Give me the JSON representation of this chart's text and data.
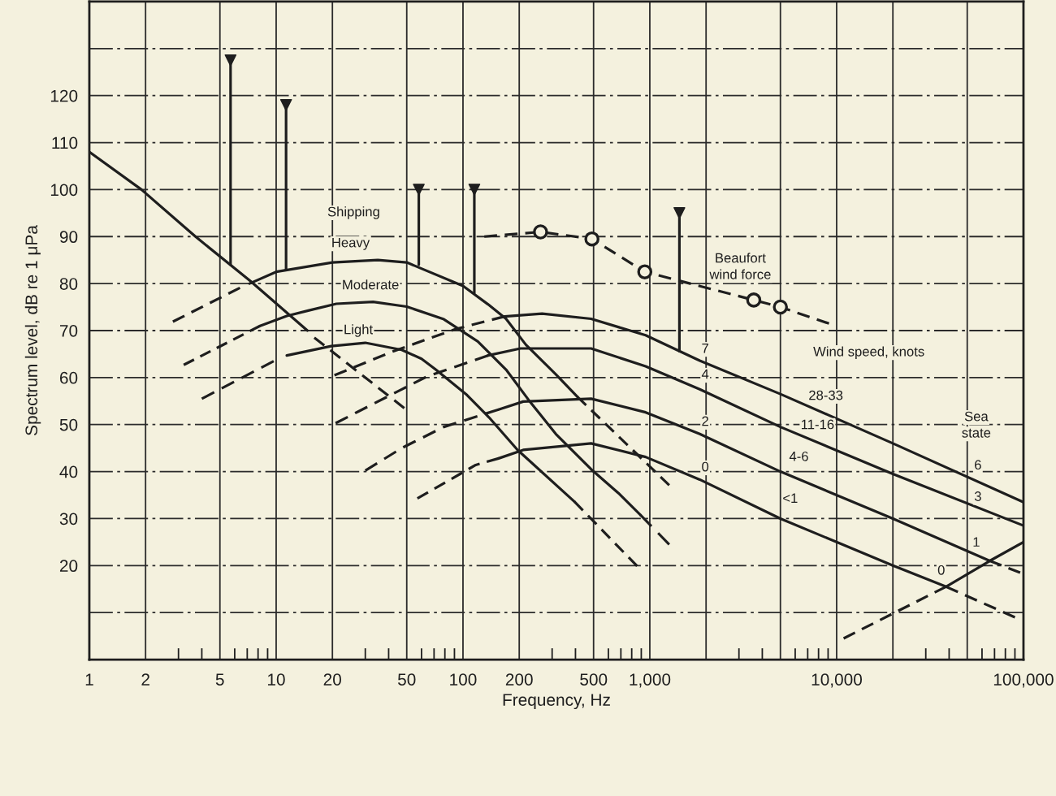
{
  "chart_data": {
    "type": "line",
    "xlabel": "Frequency, Hz",
    "ylabel": "Spectrum level, dB re 1 μPa",
    "log": "x",
    "xlim": [
      1,
      100000
    ],
    "ylim": [
      0,
      140
    ],
    "xticks": [
      1,
      2,
      5,
      10,
      20,
      50,
      100,
      200,
      500,
      {
        "value": 1000,
        "label": "1,000"
      },
      {
        "value": 2000,
        "label": null
      },
      {
        "value": 5000,
        "label": null
      },
      {
        "value": 10000,
        "label": "10,000"
      },
      {
        "value": 20000,
        "label": null
      },
      {
        "value": 50000,
        "label": null
      },
      {
        "value": 100000,
        "label": "100,000"
      }
    ],
    "yticks": [
      {
        "value": 10,
        "label": null
      },
      20,
      30,
      40,
      50,
      60,
      70,
      80,
      90,
      100,
      110,
      120,
      {
        "value": 130,
        "label": null
      }
    ],
    "grid": true,
    "series": [
      {
        "line_style": "solid",
        "color": "#1e1e1e",
        "x": [
          1,
          1.9,
          3.7,
          7.3,
          14.7
        ],
        "values": [
          108,
          100,
          90,
          80.5,
          70
        ]
      },
      {
        "line_style": "dashed",
        "color": "#1e1e1e",
        "x": [
          16,
          48.5
        ],
        "values": [
          68.5,
          53.5
        ]
      },
      {
        "line_style": "dashed",
        "color": "#1e1e1e",
        "x": [
          2.8,
          6.4
        ],
        "values": [
          71.9,
          79.1
        ]
      },
      {
        "line_style": "solid",
        "color": "#1e1e1e",
        "x": [
          7.2,
          10,
          20,
          35,
          50,
          100,
          136,
          170,
          217,
          314,
          410
        ],
        "values": [
          80,
          82.5,
          84.5,
          85,
          84.5,
          79.5,
          75.6,
          72.5,
          67,
          60.7,
          55.9
        ]
      },
      {
        "line_style": "dashed",
        "color": "#1e1e1e",
        "x": [
          410,
          1270
        ],
        "values": [
          55.9,
          37.1
        ]
      },
      {
        "line_style": "dashed",
        "color": "#1e1e1e",
        "x": [
          3.2,
          8.2
        ],
        "values": [
          62.7,
          71
        ]
      },
      {
        "line_style": "solid",
        "color": "#1e1e1e",
        "x": [
          8.2,
          11.4,
          15,
          21,
          33,
          50,
          79,
          120,
          170,
          225,
          314,
          485,
          680,
          890
        ],
        "values": [
          71,
          73.1,
          74.3,
          75.7,
          76.1,
          75.1,
          72.4,
          67.7,
          61.7,
          55.2,
          48,
          40.5,
          35.4,
          30.8
        ]
      },
      {
        "line_style": "dashed",
        "color": "#1e1e1e",
        "x": [
          890,
          1270
        ],
        "values": [
          30.8,
          24.5
        ]
      },
      {
        "line_style": "dashed",
        "color": "#1e1e1e",
        "x": [
          4,
          9.7
        ],
        "values": [
          55.5,
          63.5
        ]
      },
      {
        "line_style": "solid",
        "color": "#1e1e1e",
        "x": [
          11.4,
          15,
          19.7,
          30,
          47,
          60,
          71.5,
          105,
          138,
          196,
          395
        ],
        "values": [
          64.7,
          65.7,
          66.7,
          67.4,
          65.9,
          64,
          61.7,
          56.3,
          51.5,
          44.6,
          33.6
        ]
      },
      {
        "line_style": "dashed",
        "color": "#1e1e1e",
        "x": [
          395,
          855
        ],
        "values": [
          33.6,
          19.9
        ]
      },
      {
        "line_style": "dashed",
        "color": "#1e1e1e",
        "x": [
          20.5,
          42.4,
          91,
          167
        ],
        "values": [
          60.5,
          65.6,
          70.3,
          73
        ]
      },
      {
        "line_style": "solid",
        "color": "#1e1e1e",
        "x": [
          167,
          265,
          485,
          950,
          1850,
          5000,
          20000,
          100000
        ],
        "values": [
          73,
          73.6,
          72.5,
          69,
          63.6,
          56.5,
          46,
          33.5
        ]
      },
      {
        "line_style": "dashed",
        "color": "#1e1e1e",
        "x": [
          20.8,
          47,
          64,
          136
        ],
        "values": [
          50.3,
          57.5,
          60.2,
          64.7
        ]
      },
      {
        "line_style": "solid",
        "color": "#1e1e1e",
        "x": [
          136,
          203,
          485,
          950,
          1850,
          5000,
          20000,
          100000
        ],
        "values": [
          64.7,
          66.2,
          66.2,
          62.4,
          57.5,
          49.5,
          39.5,
          28.5
        ]
      },
      {
        "line_style": "dashed",
        "color": "#1e1e1e",
        "x": [
          30,
          47,
          79,
          155
        ],
        "values": [
          40.2,
          45,
          49.5,
          53.2
        ]
      },
      {
        "line_style": "solid",
        "color": "#1e1e1e",
        "x": [
          155,
          210,
          485,
          950,
          1850,
          5000,
          20000,
          66000
        ],
        "values": [
          53.2,
          54.9,
          55.5,
          52.6,
          48,
          40,
          30,
          21
        ]
      },
      {
        "line_style": "dashed",
        "color": "#1e1e1e",
        "x": [
          66000,
          96000
        ],
        "values": [
          21,
          18.5
        ]
      },
      {
        "line_style": "dashed",
        "color": "#1e1e1e",
        "x": [
          57,
          117,
          155
        ],
        "values": [
          34.3,
          41.4,
          42.8
        ]
      },
      {
        "line_style": "solid",
        "color": "#1e1e1e",
        "x": [
          155,
          210,
          485,
          950,
          1850,
          5000,
          20000,
          38500
        ],
        "values": [
          42.8,
          44.6,
          46,
          43.1,
          38.3,
          30,
          20,
          15.5
        ]
      },
      {
        "line_style": "dashed",
        "color": "#1e1e1e",
        "x": [
          38500,
          90000
        ],
        "values": [
          15.5,
          9
        ]
      },
      {
        "line_style": "dashed",
        "color": "#1e1e1e",
        "x": [
          10900,
          38500
        ],
        "values": [
          4.5,
          15.5
        ]
      },
      {
        "line_style": "solid",
        "color": "#1e1e1e",
        "x": [
          38500,
          66000,
          100000
        ],
        "values": [
          15.5,
          21,
          25
        ]
      },
      {
        "line_style": "dashed",
        "color": "#1e1e1e",
        "x": [
          130,
          260,
          490,
          940,
          3600,
          5000,
          9100
        ],
        "values": [
          90,
          91,
          89.5,
          82.5,
          76.5,
          75,
          71.5
        ]
      },
      {
        "type": "scatter",
        "marker": "circle",
        "color": "#1e1e1e",
        "x": [
          260,
          490,
          940,
          3600,
          5000
        ],
        "values": [
          91,
          89.5,
          82.5,
          76.5,
          75
        ]
      },
      {
        "line_style": "solid",
        "color": "#1e1e1e",
        "x": [
          5.7,
          5.7
        ],
        "values": [
          84,
          127.5
        ]
      },
      {
        "line_style": "solid",
        "color": "#1e1e1e",
        "x": [
          11.3,
          11.3
        ],
        "values": [
          83,
          118
        ]
      },
      {
        "line_style": "solid",
        "color": "#1e1e1e",
        "x": [
          58,
          58
        ],
        "values": [
          84,
          100
        ]
      },
      {
        "line_style": "solid",
        "color": "#1e1e1e",
        "x": [
          115,
          115
        ],
        "values": [
          78,
          100
        ]
      },
      {
        "line_style": "solid",
        "color": "#1e1e1e",
        "x": [
          1440,
          1440
        ],
        "values": [
          65.6,
          95
        ]
      },
      {
        "type": "scatter",
        "marker": "triangle",
        "color": "#1e1e1e",
        "x": [
          5.7,
          11.3,
          58,
          115,
          1440
        ],
        "values": [
          127.5,
          118,
          100,
          100,
          95
        ]
      }
    ],
    "annotations": [
      "Shipping",
      "Heavy",
      "Moderate",
      "Light",
      "Beaufort",
      "wind force",
      "7",
      "4",
      "2",
      "0",
      "Wind speed, knots",
      "28-33",
      "11-16",
      "4-6",
      "<1",
      "Sea",
      "state",
      "6",
      "3",
      "1",
      "0"
    ]
  }
}
